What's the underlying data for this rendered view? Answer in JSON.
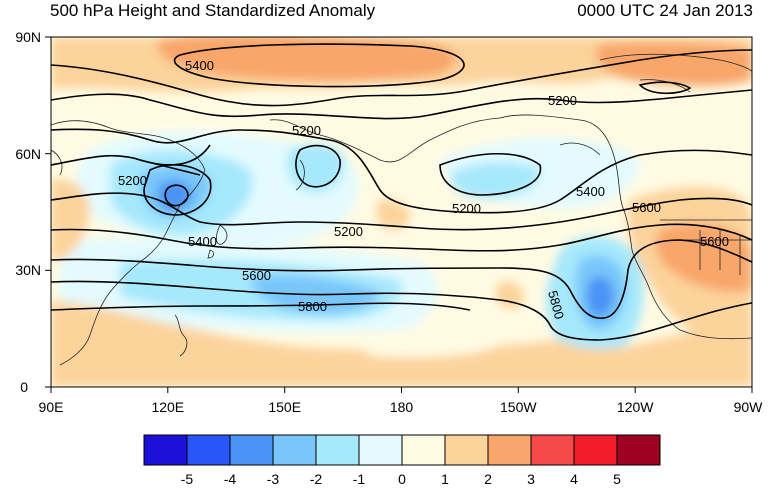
{
  "title": "500 hPa Height and Standardized Anomaly",
  "valid_time": "0000 UTC 24 Jan 2013",
  "latitude_labels": [
    "90N",
    "60N",
    "30N",
    "0"
  ],
  "longitude_labels": [
    "90E",
    "120E",
    "150E",
    "180",
    "150W",
    "120W",
    "90W"
  ],
  "contour_labels": [
    "5400",
    "5200",
    "5200",
    "5200",
    "5200",
    "5200",
    "5400",
    "5400",
    "5600",
    "5600",
    "5600",
    "5800",
    "5800"
  ],
  "colorbar": {
    "tick_labels": [
      "-5",
      "-4",
      "-3",
      "-2",
      "-1",
      "0",
      "1",
      "2",
      "3",
      "4",
      "5"
    ],
    "colors": [
      "#1c10d6",
      "#2856f8",
      "#4b93f5",
      "#78c6fa",
      "#a6e8fc",
      "#e3fbfe",
      "#fffbe3",
      "#fcd39b",
      "#f8a66b",
      "#f64a4a",
      "#f01c2a",
      "#9e0122"
    ]
  },
  "colors": {
    "background_neutral": "#fffbe3",
    "coastline": "#222222",
    "contour": "#000000"
  }
}
